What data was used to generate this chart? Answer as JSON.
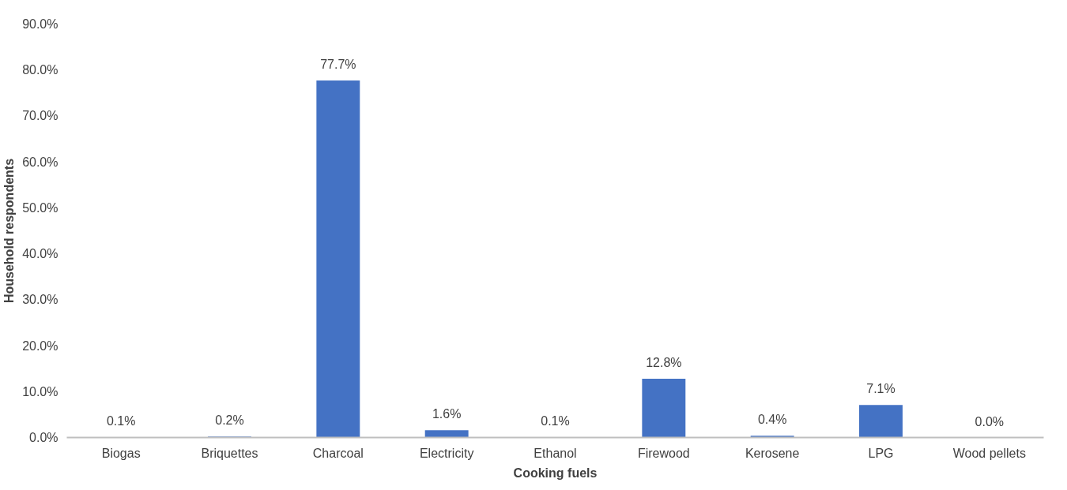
{
  "chart_data": {
    "type": "bar",
    "xlabel": "Cooking fuels",
    "ylabel": "Household respondents",
    "categories": [
      "Biogas",
      "Briquettes",
      "Charcoal",
      "Electricity",
      "Ethanol",
      "Firewood",
      "Kerosene",
      "LPG",
      "Wood pellets"
    ],
    "values": [
      0.1,
      0.2,
      77.7,
      1.6,
      0.1,
      12.8,
      0.4,
      7.1,
      0.0
    ],
    "value_labels": [
      "0.1%",
      "0.2%",
      "77.7%",
      "1.6%",
      "0.1%",
      "12.8%",
      "0.4%",
      "7.1%",
      "0.0%"
    ],
    "color": "#4472c4",
    "ylim": [
      0,
      90
    ],
    "yticks": [
      {
        "value": 0,
        "label": "0.0%"
      },
      {
        "value": 10,
        "label": "10.0%"
      },
      {
        "value": 20,
        "label": "20.0%"
      },
      {
        "value": 30,
        "label": "30.0%"
      },
      {
        "value": 40,
        "label": "40.0%"
      },
      {
        "value": 50,
        "label": "50.0%"
      },
      {
        "value": 60,
        "label": "60.0%"
      },
      {
        "value": 70,
        "label": "70.0%"
      },
      {
        "value": 80,
        "label": "80.0%"
      },
      {
        "value": 90,
        "label": "90.0%"
      }
    ],
    "grid": false
  }
}
